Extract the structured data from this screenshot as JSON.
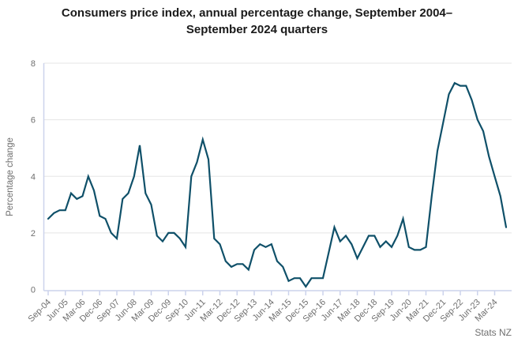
{
  "chart_data": {
    "type": "line",
    "title": "Consumers price index, annual percentage change, September 2004–September 2024 quarters",
    "ylabel": "Percentage change",
    "xlabel": "",
    "source": "Stats NZ",
    "ylim": [
      0,
      8
    ],
    "yticks": [
      0,
      2,
      4,
      6,
      8
    ],
    "grid": "horizontal",
    "legend_position": "none",
    "line_color": "#0f5069",
    "axis_color": "#ccd3ec",
    "grid_color": "#e5e5e5",
    "tick_text_color": "#6e6e6e",
    "x_tick_labels": [
      "Sep-04",
      "Jun-05",
      "Mar-06",
      "Dec-06",
      "Sep-07",
      "Jun-08",
      "Mar-09",
      "Dec-09",
      "Sep-10",
      "Jun-11",
      "Mar-12",
      "Dec-12",
      "Sep-13",
      "Jun-14",
      "Mar-15",
      "Dec-15",
      "Sep-16",
      "Jun-17",
      "Mar-18",
      "Dec-18",
      "Sep-19",
      "Jun-20",
      "Mar-21",
      "Dec-21",
      "Sep-22",
      "Jun-23",
      "Mar-24"
    ],
    "x": [
      "Sep-04",
      "Dec-04",
      "Mar-05",
      "Jun-05",
      "Sep-05",
      "Dec-05",
      "Mar-06",
      "Jun-06",
      "Sep-06",
      "Dec-06",
      "Mar-07",
      "Jun-07",
      "Sep-07",
      "Dec-07",
      "Mar-08",
      "Jun-08",
      "Sep-08",
      "Dec-08",
      "Mar-09",
      "Jun-09",
      "Sep-09",
      "Dec-09",
      "Mar-10",
      "Jun-10",
      "Sep-10",
      "Dec-10",
      "Mar-11",
      "Jun-11",
      "Sep-11",
      "Dec-11",
      "Mar-12",
      "Jun-12",
      "Sep-12",
      "Dec-12",
      "Mar-13",
      "Jun-13",
      "Sep-13",
      "Dec-13",
      "Mar-14",
      "Jun-14",
      "Sep-14",
      "Dec-14",
      "Mar-15",
      "Jun-15",
      "Sep-15",
      "Dec-15",
      "Mar-16",
      "Jun-16",
      "Sep-16",
      "Dec-16",
      "Mar-17",
      "Jun-17",
      "Sep-17",
      "Dec-17",
      "Mar-18",
      "Jun-18",
      "Sep-18",
      "Dec-18",
      "Mar-19",
      "Jun-19",
      "Sep-19",
      "Dec-19",
      "Mar-20",
      "Jun-20",
      "Sep-20",
      "Dec-20",
      "Mar-21",
      "Jun-21",
      "Sep-21",
      "Dec-21",
      "Mar-22",
      "Jun-22",
      "Sep-22",
      "Dec-22",
      "Mar-23",
      "Jun-23",
      "Sep-23",
      "Dec-23",
      "Mar-24",
      "Jun-24",
      "Sep-24"
    ],
    "values": [
      2.5,
      2.7,
      2.8,
      2.8,
      3.4,
      3.2,
      3.3,
      4.0,
      3.5,
      2.6,
      2.5,
      2.0,
      1.8,
      3.2,
      3.4,
      4.0,
      5.1,
      3.4,
      3.0,
      1.9,
      1.7,
      2.0,
      2.0,
      1.8,
      1.5,
      4.0,
      4.5,
      5.3,
      4.6,
      1.8,
      1.6,
      1.0,
      0.8,
      0.9,
      0.9,
      0.7,
      1.4,
      1.6,
      1.5,
      1.6,
      1.0,
      0.8,
      0.3,
      0.4,
      0.4,
      0.1,
      0.4,
      0.4,
      0.4,
      1.3,
      2.2,
      1.7,
      1.9,
      1.6,
      1.1,
      1.5,
      1.9,
      1.9,
      1.5,
      1.7,
      1.5,
      1.9,
      2.5,
      1.5,
      1.4,
      1.4,
      1.5,
      3.3,
      4.9,
      5.9,
      6.9,
      7.3,
      7.2,
      7.2,
      6.7,
      6.0,
      5.6,
      4.7,
      4.0,
      3.3,
      2.2
    ]
  }
}
